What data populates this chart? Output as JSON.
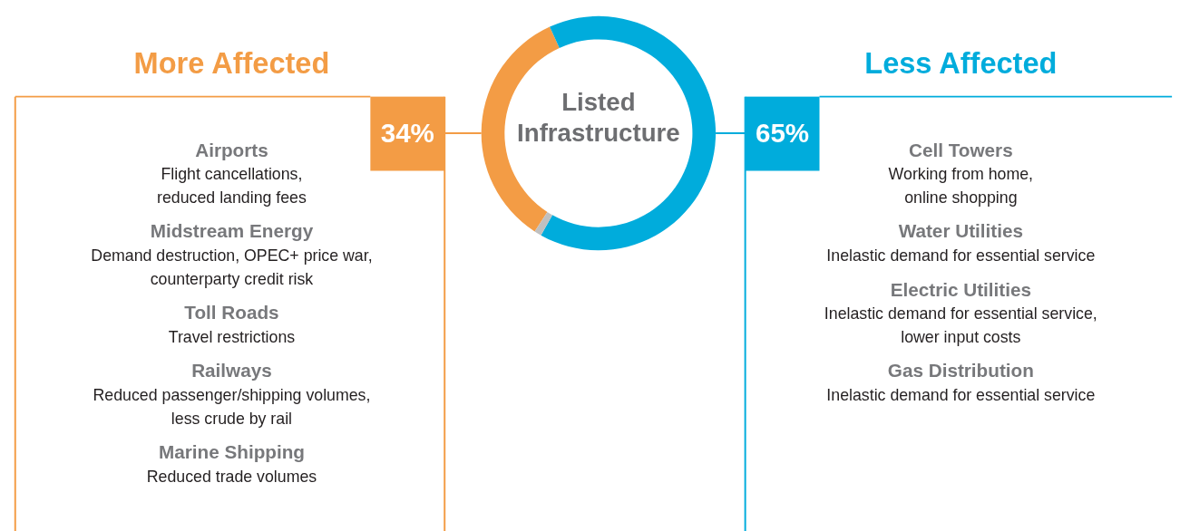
{
  "chart_data": [
    {
      "type": "donut",
      "title": "Listed\nInfrastructure",
      "categories": [
        null,
        null,
        null
      ],
      "values": [
        34,
        65,
        1
      ],
      "colors": [
        "#f39c45",
        "#00acdc",
        "#c0c0c0"
      ],
      "value_labels": [
        "34%",
        "65%",
        null
      ]
    },
    {
      "type": "other",
      "title": "More Affected",
      "color": "#f39c45",
      "annotations": [
        "Airports",
        "Flight cancellations,\nreduced landing fees",
        "Midstream Energy",
        "Demand destruction, OPEC+ price war,\ncounterparty credit risk",
        "Toll Roads",
        "Travel restrictions",
        "Railways",
        "Reduced passenger/shipping volumes,\nless crude by rail",
        "Marine Shipping",
        "Reduced trade volumes"
      ]
    },
    {
      "type": "other",
      "title": "Less Affected",
      "color": "#00acdc",
      "annotations": [
        "Cell Towers",
        "Working from home,\nonline shopping",
        "Water Utilities",
        "Inelastic demand for essential service",
        "Electric Utilities",
        "Inelastic demand for essential service,\nlower input costs",
        "Gas Distribution",
        "Inelastic demand for essential service"
      ]
    }
  ]
}
